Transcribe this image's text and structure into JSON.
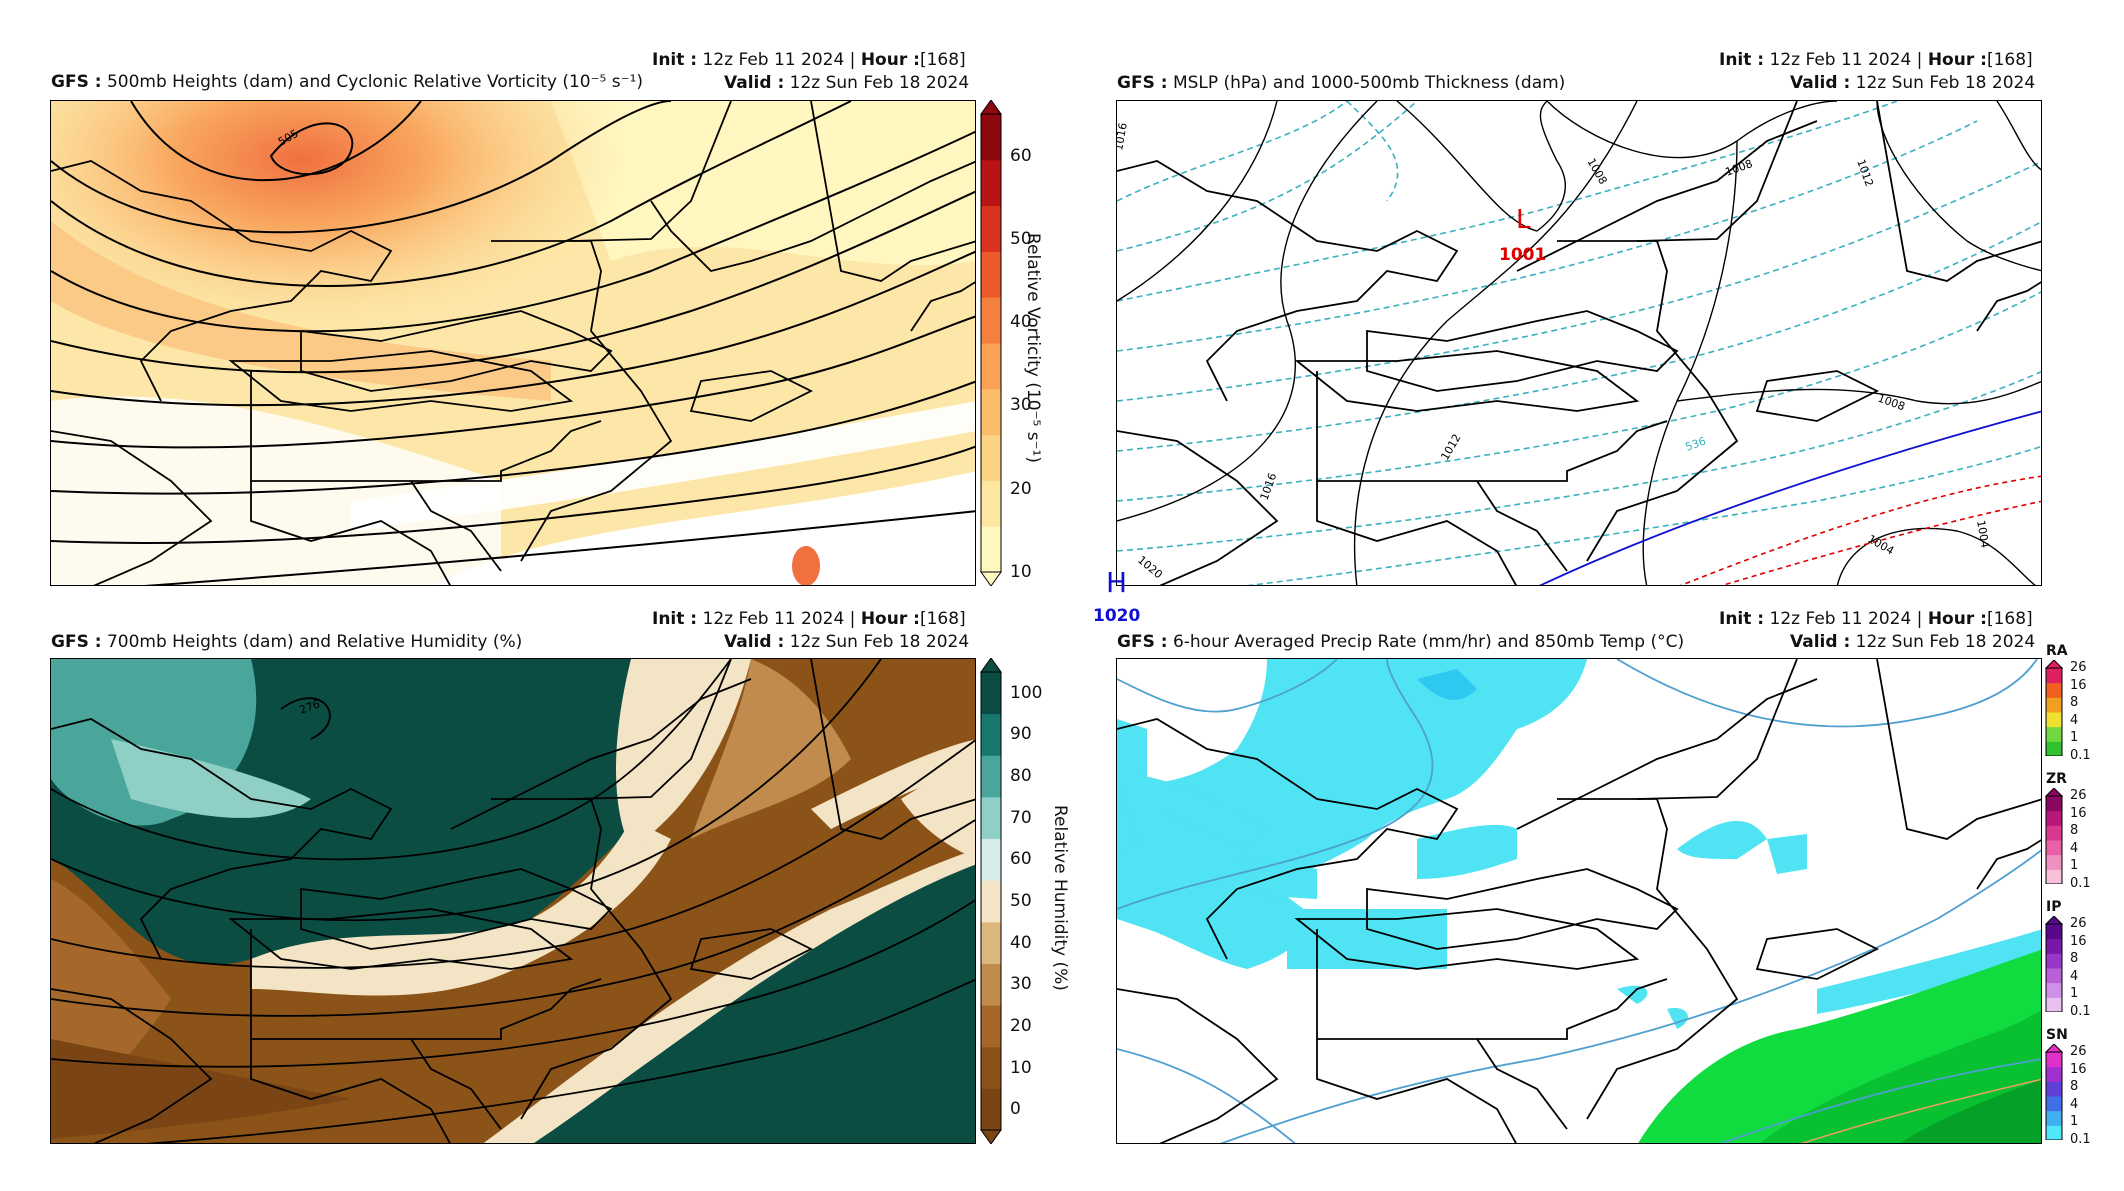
{
  "panels": [
    {
      "init_label": "Init :",
      "init_value": "12z Feb 11 2024 |",
      "hour_label": "Hour :",
      "hour_value": "[168]",
      "model": "GFS :",
      "title": "500mb Heights (dam) and Cyclonic Relative Vorticity (10⁻⁵ s⁻¹)",
      "valid_label": "Valid :",
      "valid_value": "12z Sun Feb 18 2024",
      "contour_label": "505",
      "colorbar": {
        "label": "Relative Vorticity (10⁻⁵ s⁻¹)",
        "ticks": [
          "60",
          "50",
          "40",
          "30",
          "20",
          "10"
        ],
        "colors": [
          "#fff8c0",
          "#fde7a0",
          "#fcd384",
          "#fbbd6a",
          "#f9a155",
          "#f4803f",
          "#ec5a2b",
          "#d8331f",
          "#b81416",
          "#8e0810"
        ]
      }
    },
    {
      "init_label": "Init :",
      "init_value": "12z Feb 11 2024 |",
      "hour_label": "Hour :",
      "hour_value": "[168]",
      "model": "GFS :",
      "title": "MSLP (hPa) and 1000-500mb Thickness (dam)",
      "valid_label": "Valid :",
      "valid_value": "12z Sun Feb 18 2024",
      "low_symbol": "L",
      "low_value": "1001",
      "high_symbol": "H",
      "high_value": "1020",
      "isobar_labels": [
        "1016",
        "1008",
        "1008",
        "1012",
        "1008",
        "1004",
        "1004",
        "1016",
        "1012",
        "1020"
      ],
      "thickness_label": "536",
      "colors": {
        "low": "#e00000",
        "high": "#1010d0",
        "thickness": "#3ab0c0"
      }
    },
    {
      "init_label": "Init :",
      "init_value": "12z Feb 11 2024 |",
      "hour_label": "Hour :",
      "hour_value": "[168]",
      "model": "GFS :",
      "title": "700mb Heights (dam) and Relative Humidity (%)",
      "valid_label": "Valid :",
      "valid_value": "12z Sun Feb 18 2024",
      "contour_label": "276",
      "colorbar": {
        "label": "Relative Humidity (%)",
        "ticks": [
          "100",
          "90",
          "80",
          "70",
          "60",
          "50",
          "40",
          "30",
          "20",
          "10",
          "0"
        ],
        "colors": [
          "#7a4414",
          "#8c5318",
          "#a5682a",
          "#c08b4c",
          "#dcb77e",
          "#f2e4c4",
          "#d6ece8",
          "#8fcfc6",
          "#4aa69a",
          "#18786e",
          "#0b4d43"
        ]
      }
    },
    {
      "init_label": "Init :",
      "init_value": "12z Feb 11 2024 |",
      "hour_label": "Hour :",
      "hour_value": "[168]",
      "model": "GFS :",
      "title": "6-hour Averaged Precip Rate (mm/hr) and 850mb Temp (°C)",
      "valid_label": "Valid :",
      "valid_value": "12z Sun Feb 18 2024",
      "ptype_bars": [
        {
          "label": "RA",
          "ticks": [
            "26",
            "16",
            "8",
            "4",
            "1",
            "0.1"
          ],
          "colors": [
            "#30c030",
            "#70d840",
            "#f0e030",
            "#f0a020",
            "#f06020",
            "#e02060"
          ]
        },
        {
          "label": "ZR",
          "ticks": [
            "26",
            "16",
            "8",
            "4",
            "1",
            "0.1"
          ],
          "colors": [
            "#f8c0d8",
            "#f090c0",
            "#e860a8",
            "#d83890",
            "#b81878",
            "#8a0860"
          ]
        },
        {
          "label": "IP",
          "ticks": [
            "26",
            "16",
            "8",
            "4",
            "1",
            "0.1"
          ],
          "colors": [
            "#e8c0f0",
            "#d090e8",
            "#b860d8",
            "#9838c8",
            "#7818a8",
            "#580888"
          ]
        },
        {
          "label": "SN",
          "ticks": [
            "26",
            "16",
            "8",
            "4",
            "1",
            "0.1"
          ],
          "colors": [
            "#50e8f8",
            "#40b0f0",
            "#4070e8",
            "#6040d8",
            "#a030d0",
            "#e030c8"
          ]
        }
      ]
    }
  ]
}
